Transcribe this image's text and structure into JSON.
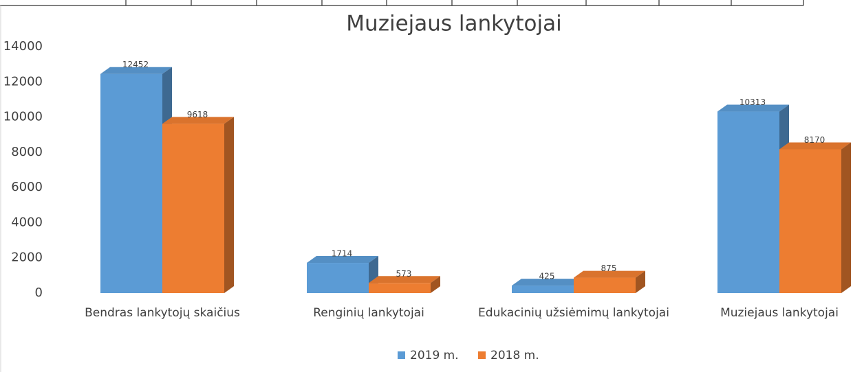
{
  "chart_data": {
    "type": "bar3d",
    "title": "Muziejaus lankytojai",
    "categories": [
      "Bendras lankytojų skaičius",
      "Renginių lankytojai",
      "Edukacinių užsiėmimų lankytojai",
      "Muziejaus lankytojai"
    ],
    "series": [
      {
        "name": "2019 m.",
        "color": "#5b9bd5",
        "values": [
          12452,
          1714,
          425,
          10313
        ]
      },
      {
        "name": "2018 m.",
        "color": "#ed7d31",
        "values": [
          9618,
          573,
          875,
          8170
        ]
      }
    ],
    "ylim": [
      0,
      14000
    ],
    "yticks": [
      0,
      2000,
      4000,
      6000,
      8000,
      10000,
      12000,
      14000
    ],
    "grid": false,
    "legend": "bottom"
  }
}
